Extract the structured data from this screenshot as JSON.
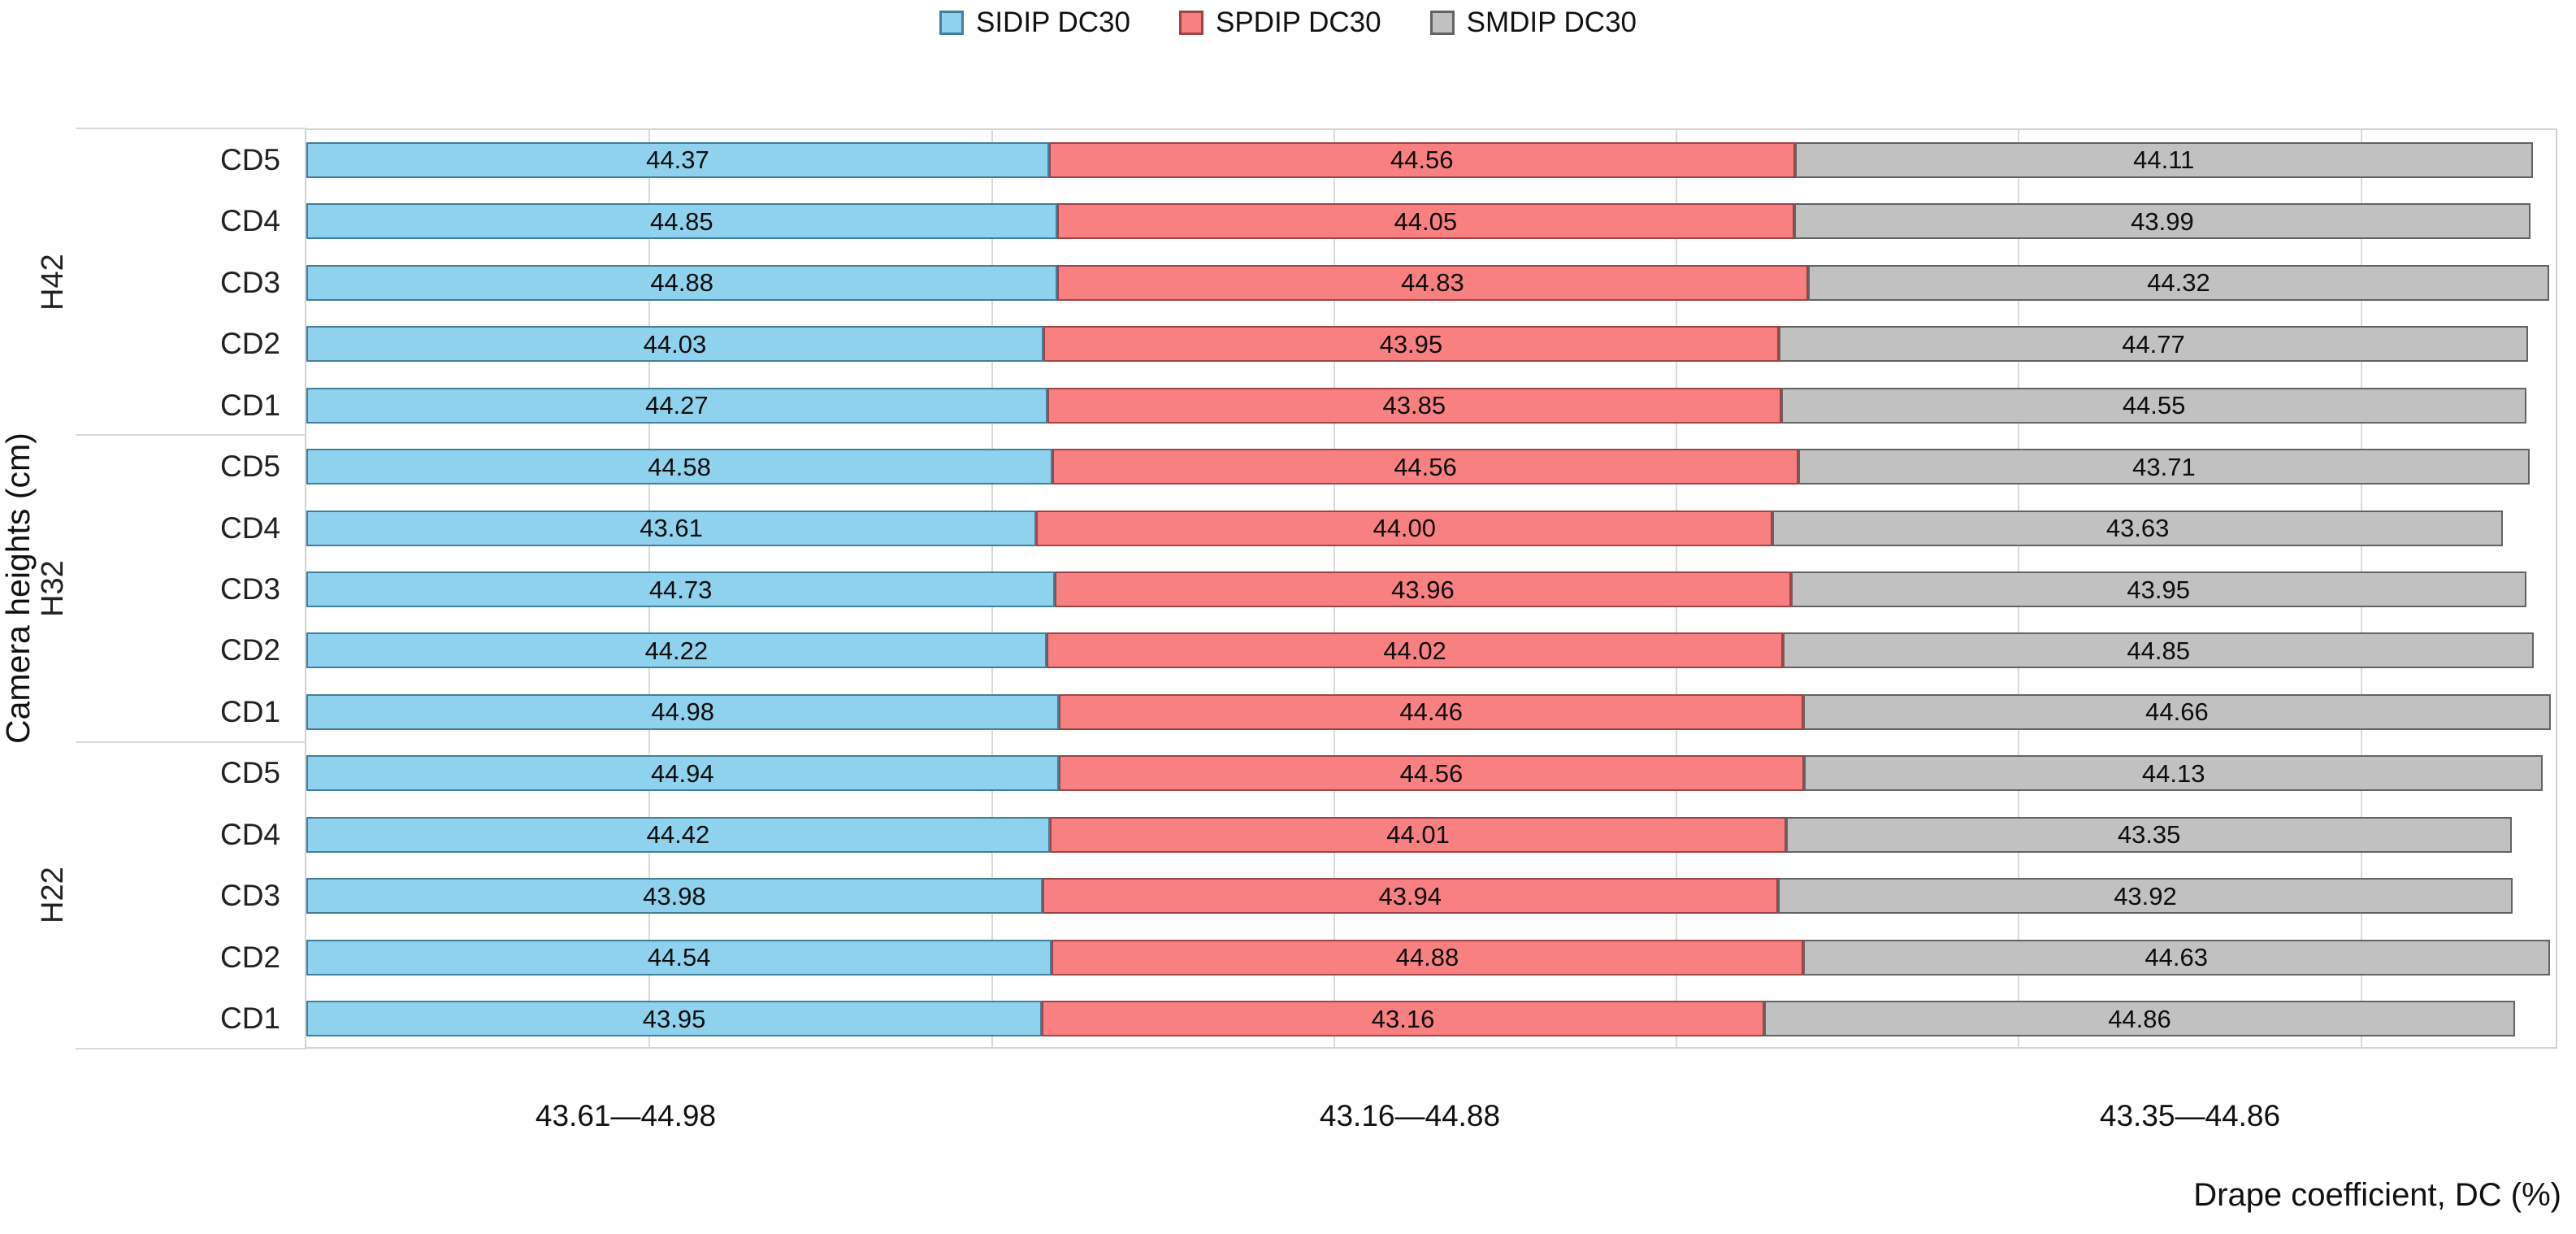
{
  "legend": [
    {
      "label": "SIDIP DC30",
      "color": "#8ed2ee",
      "border": "#41809b"
    },
    {
      "label": "SPDIP DC30",
      "color": "#f98080",
      "border": "#9e4446"
    },
    {
      "label": "SMDIP DC30",
      "color": "#c1c1c1",
      "border": "#636363"
    }
  ],
  "chart_data": {
    "type": "bar",
    "variant": "horizontal-stacked",
    "title": "",
    "xlabel": "Drape coefficient, DC (%)",
    "ylabel": "Camera heights (cm)",
    "xlim": [
      0,
      134.4
    ],
    "grid": "vertical-light-gray",
    "legend_position": "top-center",
    "series_names": [
      "SIDIP DC30",
      "SPDIP DC30",
      "SMDIP DC30"
    ],
    "colors": {
      "sidip": "#8ed2ee",
      "spdip": "#f98080",
      "smdip": "#c1c1c1"
    },
    "groups": [
      {
        "label": "H42",
        "rows": [
          {
            "label": "CD5",
            "values": [
              44.37,
              44.56,
              44.11
            ]
          },
          {
            "label": "CD4",
            "values": [
              44.85,
              44.05,
              43.99
            ]
          },
          {
            "label": "CD3",
            "values": [
              44.88,
              44.83,
              44.32
            ]
          },
          {
            "label": "CD2",
            "values": [
              44.03,
              43.95,
              44.77
            ]
          },
          {
            "label": "CD1",
            "values": [
              44.27,
              43.85,
              44.55
            ]
          }
        ]
      },
      {
        "label": "H32",
        "rows": [
          {
            "label": "CD5",
            "values": [
              44.58,
              44.56,
              43.71
            ]
          },
          {
            "label": "CD4",
            "values": [
              43.61,
              44.0,
              43.63
            ]
          },
          {
            "label": "CD3",
            "values": [
              44.73,
              43.96,
              43.95
            ]
          },
          {
            "label": "CD2",
            "values": [
              44.22,
              44.02,
              44.85
            ]
          },
          {
            "label": "CD1",
            "values": [
              44.98,
              44.46,
              44.66
            ]
          }
        ]
      },
      {
        "label": "H22",
        "rows": [
          {
            "label": "CD5",
            "values": [
              44.94,
              44.56,
              44.13
            ]
          },
          {
            "label": "CD4",
            "values": [
              44.42,
              44.01,
              43.35
            ]
          },
          {
            "label": "CD3",
            "values": [
              43.98,
              43.94,
              43.92
            ]
          },
          {
            "label": "CD2",
            "values": [
              44.54,
              44.88,
              44.63
            ]
          },
          {
            "label": "CD1",
            "values": [
              43.95,
              43.16,
              44.86
            ]
          }
        ]
      },
      {
        "label_note": ""
      }
    ],
    "range_labels": [
      "43.61—44.98",
      "43.16—44.88",
      "43.35—44.86"
    ]
  }
}
